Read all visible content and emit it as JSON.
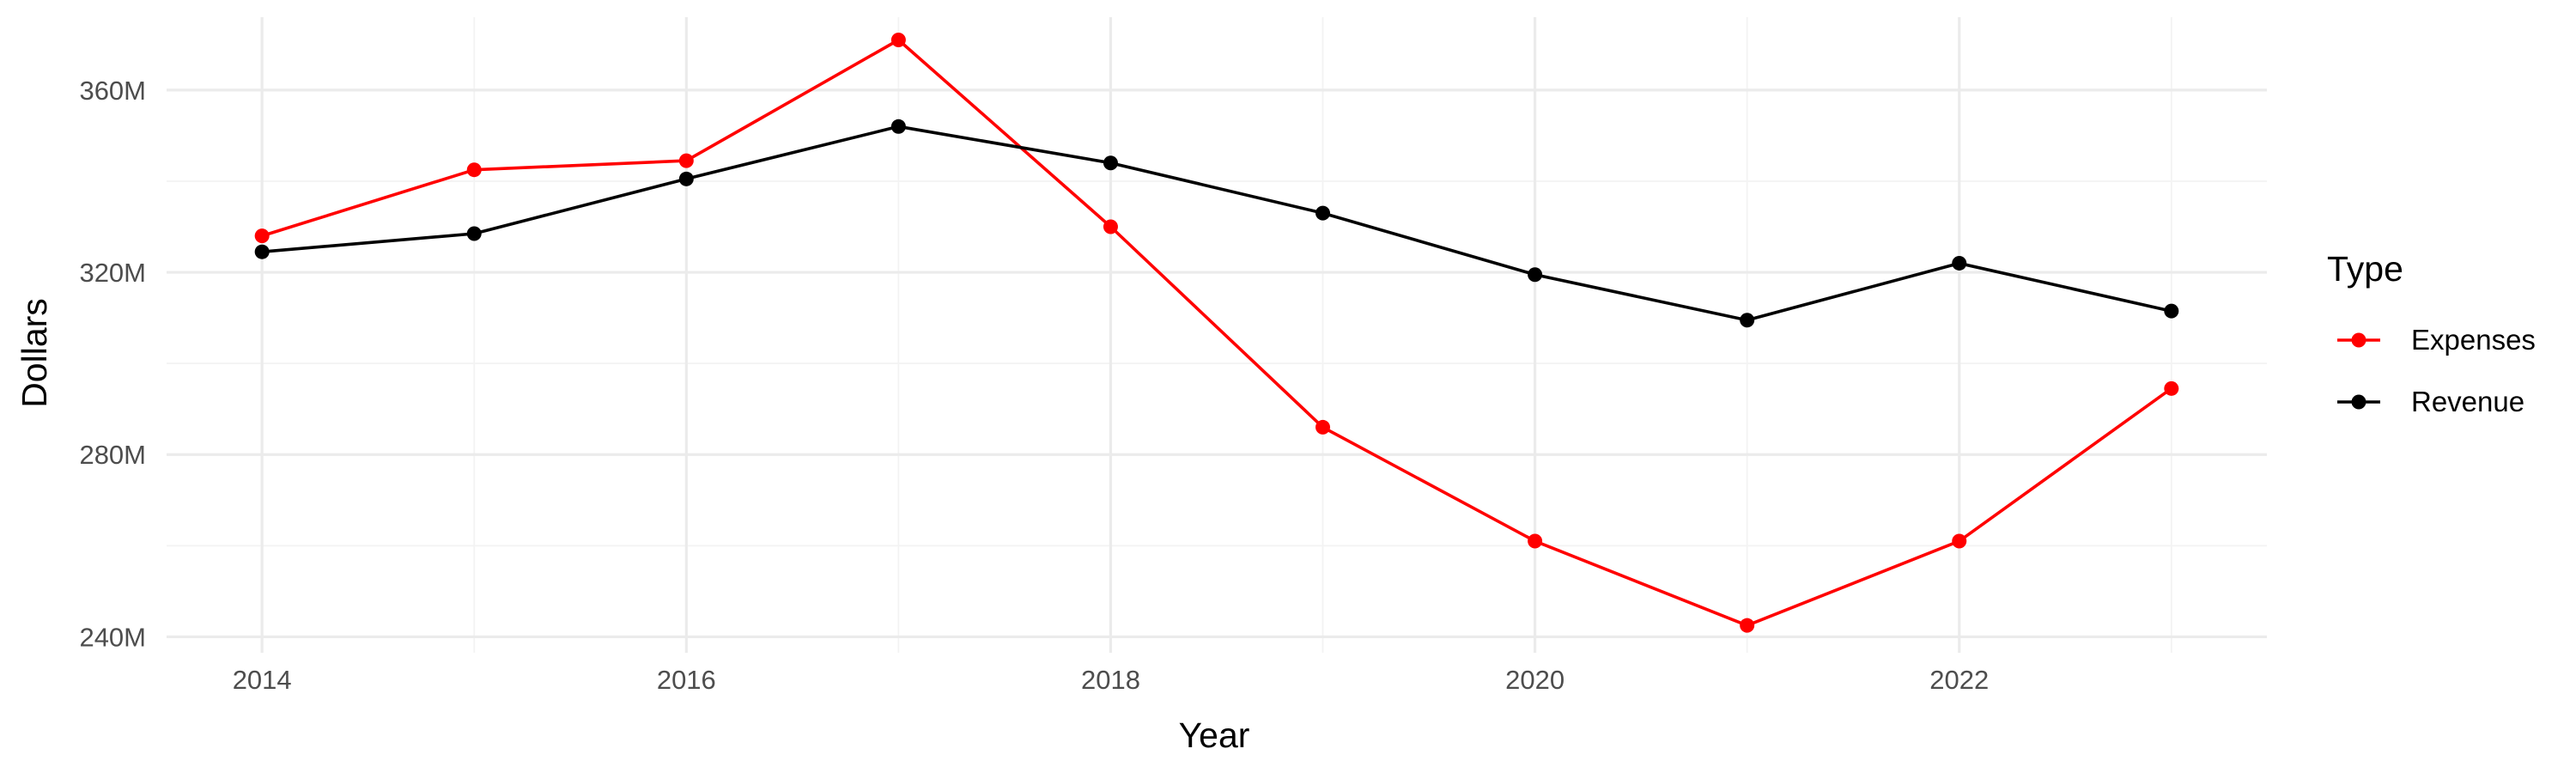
{
  "chart_data": {
    "type": "line",
    "title": "",
    "xlabel": "Year",
    "ylabel": "Dollars",
    "x": [
      2014,
      2015,
      2016,
      2017,
      2018,
      2019,
      2020,
      2021,
      2022,
      2023
    ],
    "x_ticks": [
      2014,
      2016,
      2018,
      2020,
      2022
    ],
    "x_tick_labels": [
      "2014",
      "2016",
      "2018",
      "2020",
      "2022"
    ],
    "xlim": [
      2013.55,
      2023.45
    ],
    "y_ticks": [
      240000000,
      280000000,
      320000000,
      360000000
    ],
    "y_tick_labels": [
      "240M",
      "280M",
      "320M",
      "360M"
    ],
    "ylim": [
      236500000,
      376000000
    ],
    "grid": true,
    "legend": {
      "title": "Type",
      "position": "right"
    },
    "series": [
      {
        "name": "Expenses",
        "color": "#ff0000",
        "values": [
          328000000,
          342500000,
          344500000,
          371000000,
          330000000,
          286000000,
          261000000,
          242500000,
          261000000,
          294500000
        ]
      },
      {
        "name": "Revenue",
        "color": "#000000",
        "values": [
          324500000,
          328500000,
          340500000,
          352000000,
          344000000,
          333000000,
          319500000,
          309500000,
          322000000,
          311500000
        ]
      }
    ]
  }
}
